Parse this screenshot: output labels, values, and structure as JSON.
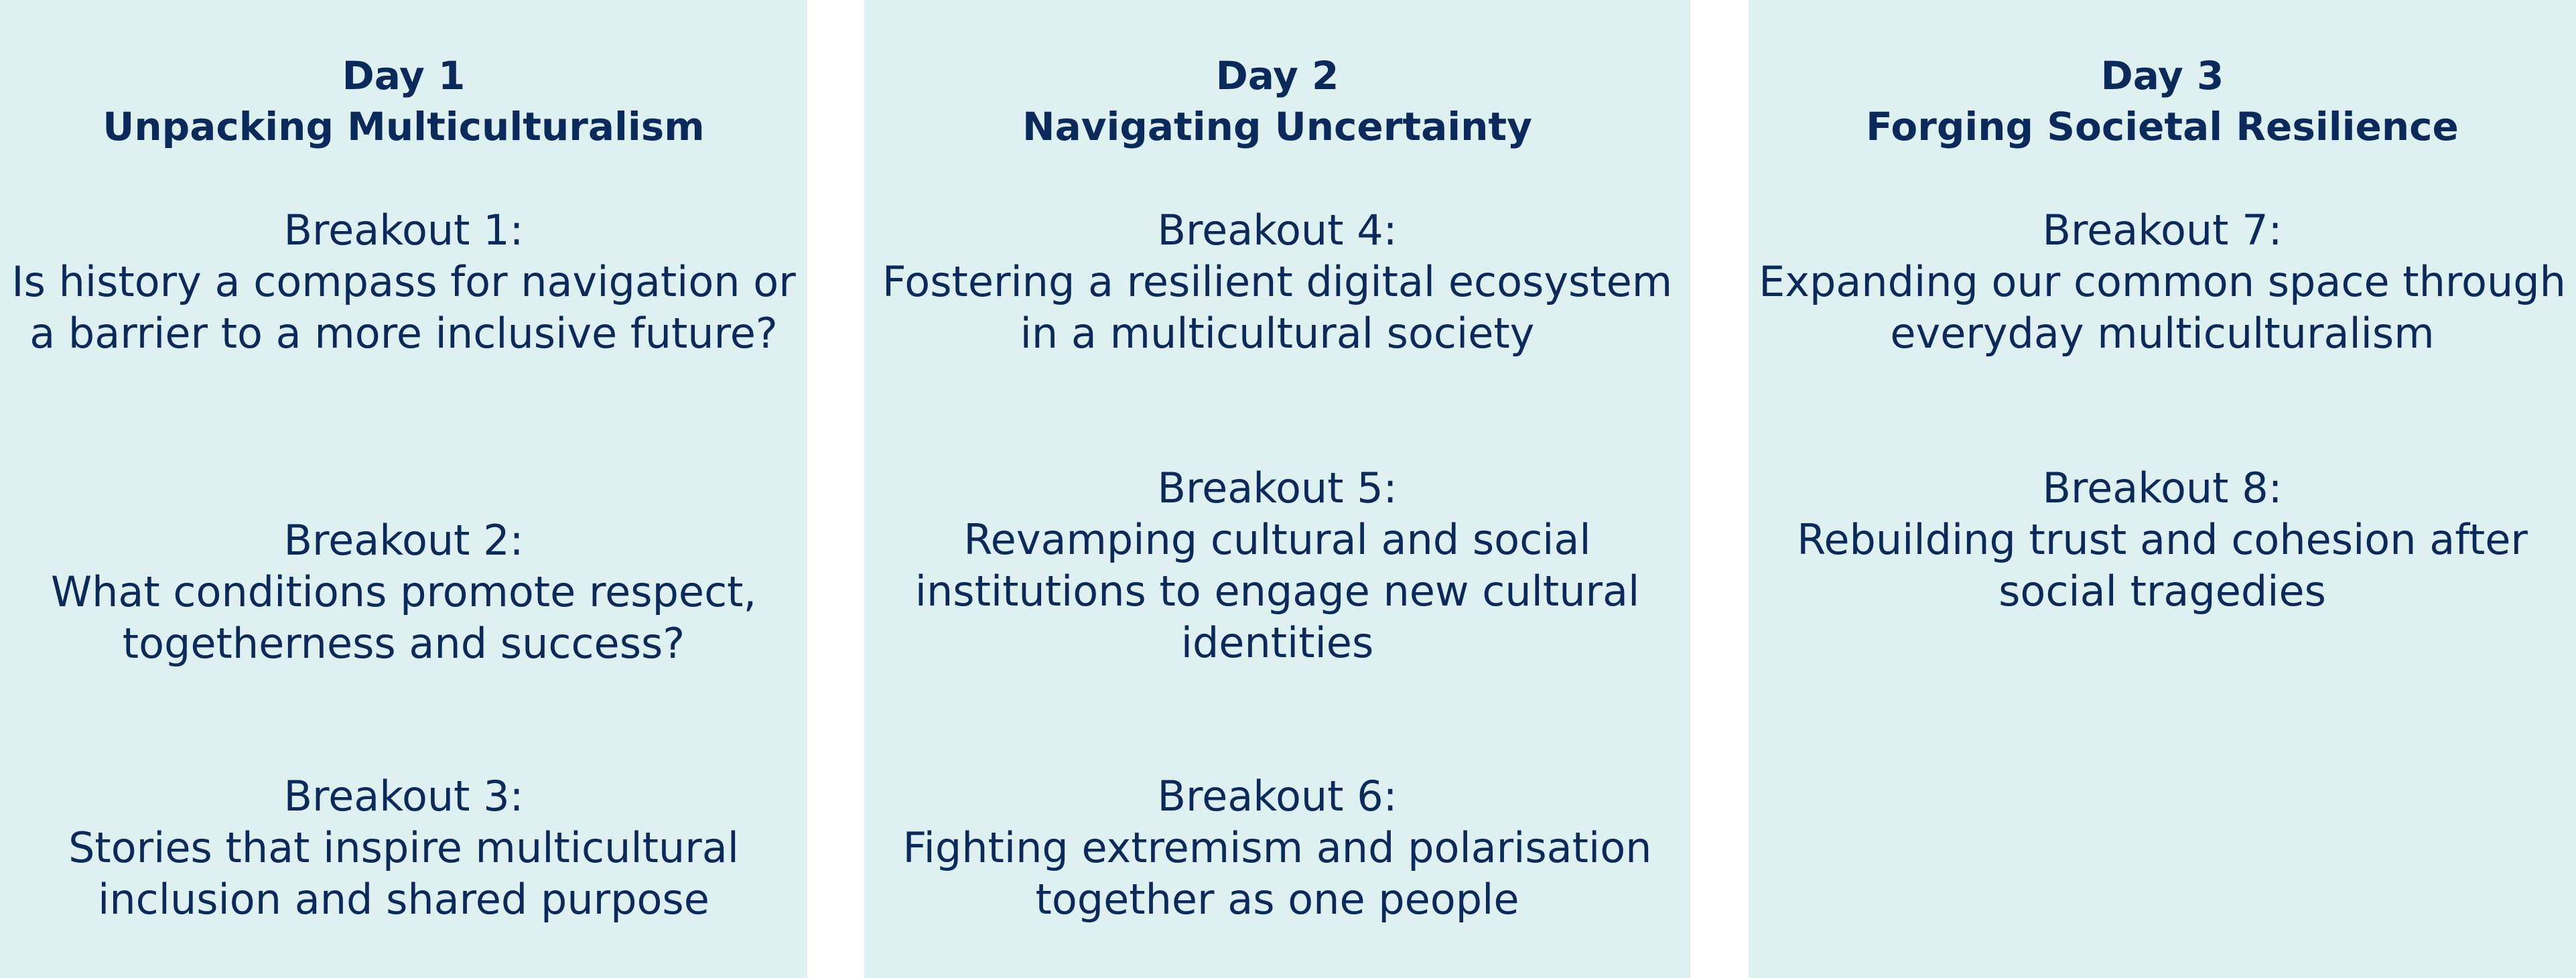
{
  "colors": {
    "panel_background": "#def0f0",
    "text": "#0b2a5c",
    "page_background": "#ffffff"
  },
  "days": [
    {
      "day": "Day 1",
      "theme": "Unpacking Multiculturalism",
      "breakouts": [
        {
          "label": "Breakout 1:",
          "title": "Is history a compass for navigation or a barrier to a more inclusive future?"
        },
        {
          "label": "Breakout 2:",
          "title": "What conditions promote respect, togetherness and success?"
        },
        {
          "label": "Breakout 3:",
          "title": "Stories that inspire multicultural inclusion and shared purpose"
        }
      ]
    },
    {
      "day": "Day 2",
      "theme": "Navigating Uncertainty",
      "breakouts": [
        {
          "label": "Breakout 4:",
          "title": "Fostering a resilient digital ecosystem in a multicultural society"
        },
        {
          "label": "Breakout 5:",
          "title": "Revamping cultural and social institutions to engage new cultural identities"
        },
        {
          "label": "Breakout 6:",
          "title": "Fighting extremism and polarisation together as one people"
        }
      ]
    },
    {
      "day": "Day 3",
      "theme": "Forging Societal Resilience",
      "breakouts": [
        {
          "label": "Breakout 7:",
          "title": "Expanding our common space through everyday multiculturalism"
        },
        {
          "label": "Breakout 8:",
          "title": "Rebuilding trust and cohesion after social tragedies"
        }
      ]
    }
  ]
}
